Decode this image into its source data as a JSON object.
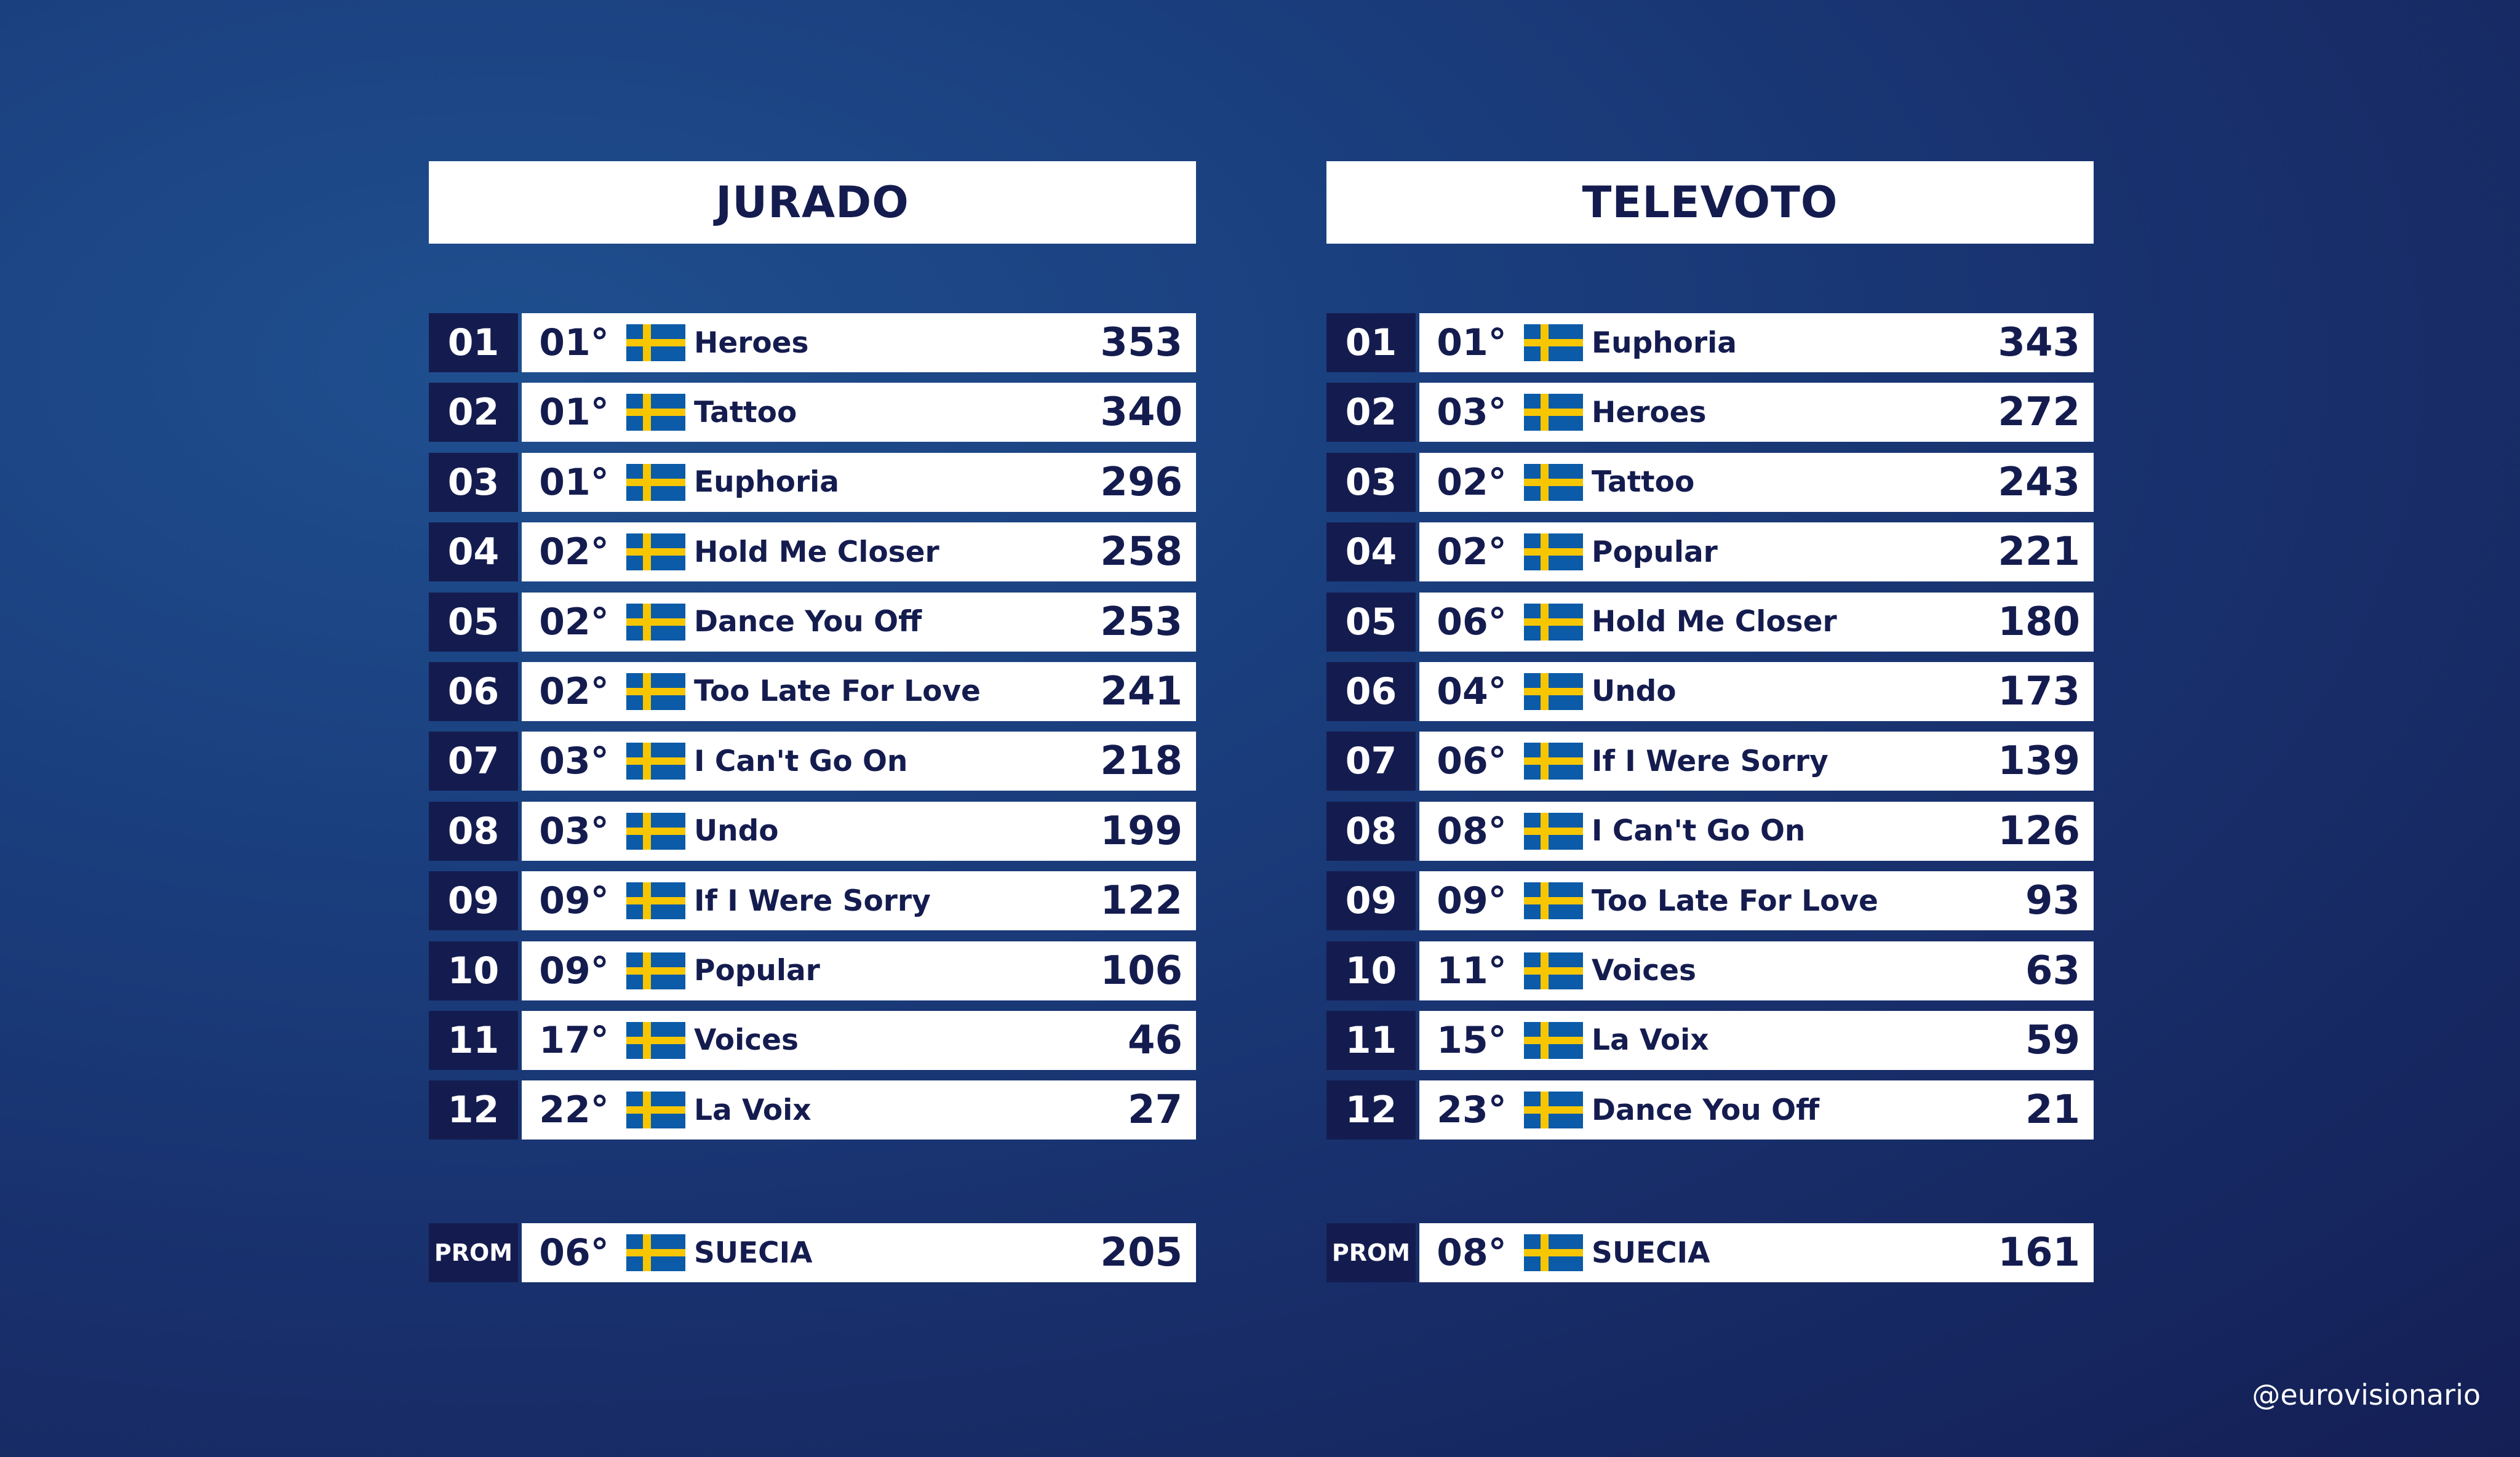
{
  "jurado": {
    "title": "JURADO",
    "rows": [
      {
        "rank": "01",
        "place": "01°",
        "song": "Heroes",
        "points": "353"
      },
      {
        "rank": "02",
        "place": "01°",
        "song": "Tattoo",
        "points": "340"
      },
      {
        "rank": "03",
        "place": "01°",
        "song": "Euphoria",
        "points": "296"
      },
      {
        "rank": "04",
        "place": "02°",
        "song": "Hold Me Closer",
        "points": "258"
      },
      {
        "rank": "05",
        "place": "02°",
        "song": "Dance You Off",
        "points": "253"
      },
      {
        "rank": "06",
        "place": "02°",
        "song": "Too Late For Love",
        "points": "241"
      },
      {
        "rank": "07",
        "place": "03°",
        "song": "I Can't Go On",
        "points": "218"
      },
      {
        "rank": "08",
        "place": "03°",
        "song": "Undo",
        "points": "199"
      },
      {
        "rank": "09",
        "place": "09°",
        "song": "If I Were Sorry",
        "points": "122"
      },
      {
        "rank": "10",
        "place": "09°",
        "song": "Popular",
        "points": "106"
      },
      {
        "rank": "11",
        "place": "17°",
        "song": "Voices",
        "points": "46"
      },
      {
        "rank": "12",
        "place": "22°",
        "song": "La Voix",
        "points": "27"
      }
    ],
    "prom": {
      "label": "PROM",
      "place": "06°",
      "country": "SUECIA",
      "points": "205"
    }
  },
  "televoto": {
    "title": "TELEVOTO",
    "rows": [
      {
        "rank": "01",
        "place": "01°",
        "song": "Euphoria",
        "points": "343"
      },
      {
        "rank": "02",
        "place": "03°",
        "song": "Heroes",
        "points": "272"
      },
      {
        "rank": "03",
        "place": "02°",
        "song": "Tattoo",
        "points": "243"
      },
      {
        "rank": "04",
        "place": "02°",
        "song": "Popular",
        "points": "221"
      },
      {
        "rank": "05",
        "place": "06°",
        "song": "Hold Me Closer",
        "points": "180"
      },
      {
        "rank": "06",
        "place": "04°",
        "song": "Undo",
        "points": "173"
      },
      {
        "rank": "07",
        "place": "06°",
        "song": "If I Were Sorry",
        "points": "139"
      },
      {
        "rank": "08",
        "place": "08°",
        "song": "I Can't Go On",
        "points": "126"
      },
      {
        "rank": "09",
        "place": "09°",
        "song": "Too Late For Love",
        "points": "93"
      },
      {
        "rank": "10",
        "place": "11°",
        "song": "Voices",
        "points": "63"
      },
      {
        "rank": "11",
        "place": "15°",
        "song": "La Voix",
        "points": "59"
      },
      {
        "rank": "12",
        "place": "23°",
        "song": "Dance You Off",
        "points": "21"
      }
    ],
    "prom": {
      "label": "PROM",
      "place": "08°",
      "country": "SUECIA",
      "points": "161"
    }
  },
  "flag_icon": "sweden-flag-icon",
  "colors": {
    "navy": "#141c4f",
    "flag_blue": "#0b5ba8",
    "flag_yellow": "#f7c600",
    "background": "#1a3d7c"
  },
  "credit": "@eurovisionario"
}
